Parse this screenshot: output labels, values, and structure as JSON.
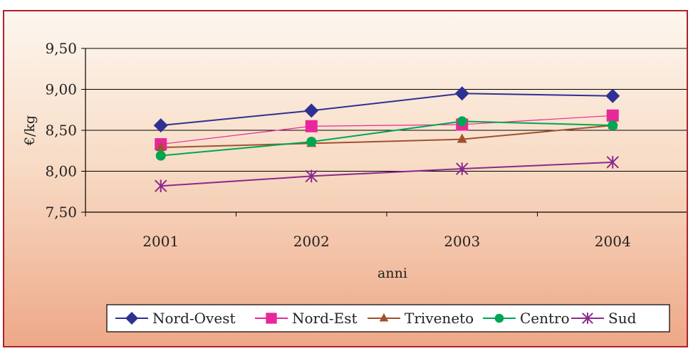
{
  "caption": "",
  "chart_data": {
    "type": "line",
    "title": "",
    "xlabel": "anni",
    "ylabel": "€/kg",
    "categories": [
      "2001",
      "2002",
      "2003",
      "2004"
    ],
    "ylim": [
      7.5,
      9.5
    ],
    "yticks": [
      "7,50",
      "8,00",
      "8,50",
      "9,00",
      "9,50"
    ],
    "ytick_values": [
      7.5,
      8.0,
      8.5,
      9.0,
      9.5
    ],
    "grid": "horizontal",
    "legend_position": "bottom",
    "series": [
      {
        "name": "Nord-Ovest",
        "values": [
          8.56,
          8.74,
          8.95,
          8.92
        ],
        "color": "#2e3192",
        "marker": "diamond"
      },
      {
        "name": "Nord-Est",
        "values": [
          8.33,
          8.55,
          8.57,
          8.68
        ],
        "color": "#e8279a",
        "marker": "square"
      },
      {
        "name": "Triveneto",
        "values": [
          8.29,
          8.34,
          8.39,
          8.56
        ],
        "color": "#a0522d",
        "marker": "triangle"
      },
      {
        "name": "Centro",
        "values": [
          8.19,
          8.36,
          8.61,
          8.56
        ],
        "color": "#00a651",
        "marker": "circle"
      },
      {
        "name": "Sud",
        "values": [
          7.82,
          7.94,
          8.03,
          8.11
        ],
        "color": "#8b2a8b",
        "marker": "asterisk"
      }
    ]
  }
}
